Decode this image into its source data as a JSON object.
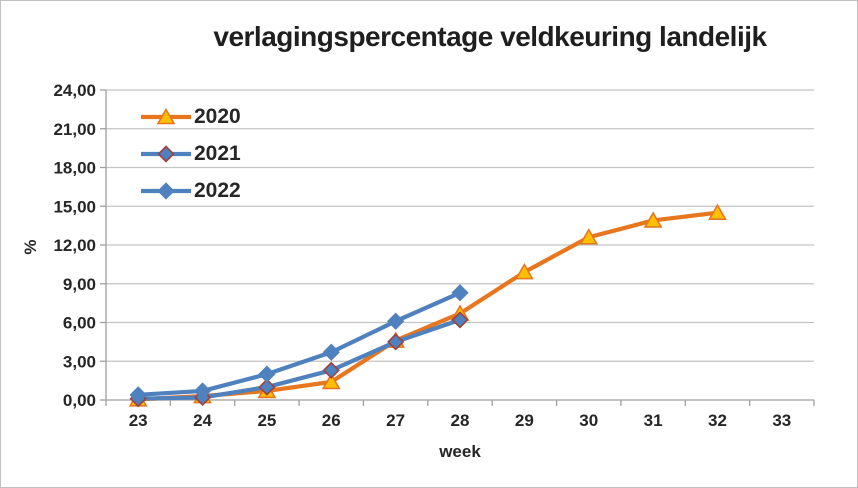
{
  "colors": {
    "background": "#FFFFFF",
    "chart_border": "#C0C0C0",
    "grid": "#C3C3C3",
    "axis": "#9E9E9E",
    "text": "#262626",
    "orange_2020": "#E8761F",
    "yellow_marker": "#FFC000",
    "blue_line": "#4E81BD",
    "red_marker_border": "#9E413E"
  },
  "chart_data": {
    "type": "line",
    "title": "verlagingspercentage veldkeuring landelijk",
    "xlabel": "week",
    "ylabel": "%",
    "categories": [
      23,
      24,
      25,
      26,
      27,
      28,
      29,
      30,
      31,
      32,
      33
    ],
    "ylim": [
      0,
      24
    ],
    "y_tick_step": 3,
    "y_tick_labels": [
      "0,00",
      "3,00",
      "6,00",
      "9,00",
      "12,00",
      "15,00",
      "18,00",
      "21,00",
      "24,00"
    ],
    "grid": true,
    "legend_position": "top-left-inside",
    "series": [
      {
        "name": "2020",
        "color": "#E8761F",
        "marker": "triangle",
        "marker_fill": "#FFC000",
        "marker_stroke": "#E8761F",
        "weeks": [
          23,
          24,
          25,
          26,
          27,
          28,
          29,
          30,
          31,
          32
        ],
        "values": [
          0.05,
          0.3,
          0.7,
          1.4,
          4.6,
          6.7,
          9.9,
          12.6,
          13.9,
          14.5
        ]
      },
      {
        "name": "2021",
        "color": "#4E81BD",
        "marker": "diamond",
        "marker_fill": "#4E81BD",
        "marker_stroke": "#9E413E",
        "weeks": [
          23,
          24,
          25,
          26,
          27,
          28
        ],
        "values": [
          0.1,
          0.2,
          1.0,
          2.3,
          4.5,
          6.2
        ]
      },
      {
        "name": "2022",
        "color": "#4E81BD",
        "marker": "diamond",
        "marker_fill": "#4E81BD",
        "marker_stroke": "#4E81BD",
        "weeks": [
          23,
          24,
          25,
          26,
          27,
          28
        ],
        "values": [
          0.4,
          0.7,
          2.0,
          3.7,
          6.1,
          8.3
        ]
      }
    ]
  }
}
